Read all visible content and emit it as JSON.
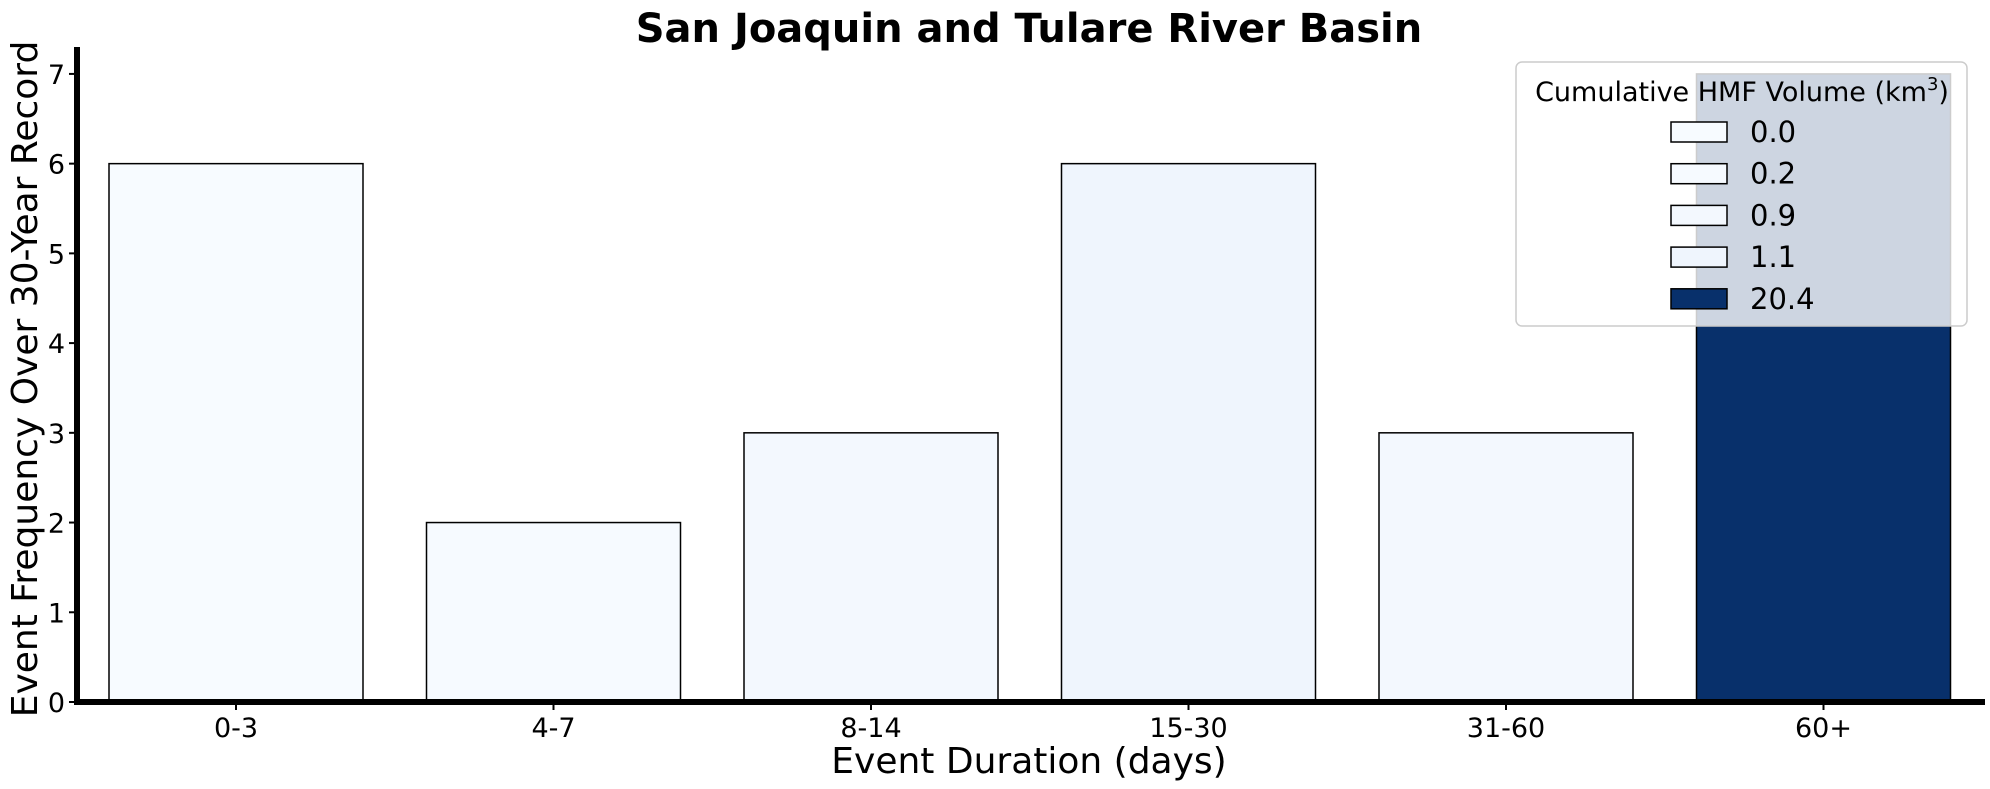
{
  "chart_data": {
    "type": "bar",
    "title": "San Joaquin and Tulare River Basin",
    "xlabel": "Event Duration (days)",
    "ylabel": "Event Frequency Over 30-Year Record",
    "categories": [
      "0-3",
      "4-7",
      "8-14",
      "15-30",
      "31-60",
      "60+"
    ],
    "values": [
      6,
      2,
      3,
      6,
      3,
      7
    ],
    "cumulative_volume_km3": [
      0.0,
      0.2,
      0.9,
      1.1,
      0.9,
      20.4
    ],
    "bar_colors": [
      "#f7fbff",
      "#f6faff",
      "#f3f8fe",
      "#eff5fd",
      "#f3f8fe",
      "#08306b"
    ],
    "ylim": [
      0,
      7.3
    ],
    "yticks": [
      0,
      1,
      2,
      3,
      4,
      5,
      6,
      7
    ],
    "grid": false,
    "legend": {
      "title_main": "Cumulative HMF Volume (km",
      "title_sup": "3",
      "title_end": ")",
      "placement": "top-right",
      "entries": [
        {
          "label": "0.0",
          "color": "#f7fbff"
        },
        {
          "label": "0.2",
          "color": "#f6faff"
        },
        {
          "label": "0.9",
          "color": "#f3f8fe"
        },
        {
          "label": "1.1",
          "color": "#eff5fd"
        },
        {
          "label": "20.4",
          "color": "#08306b"
        }
      ]
    }
  }
}
